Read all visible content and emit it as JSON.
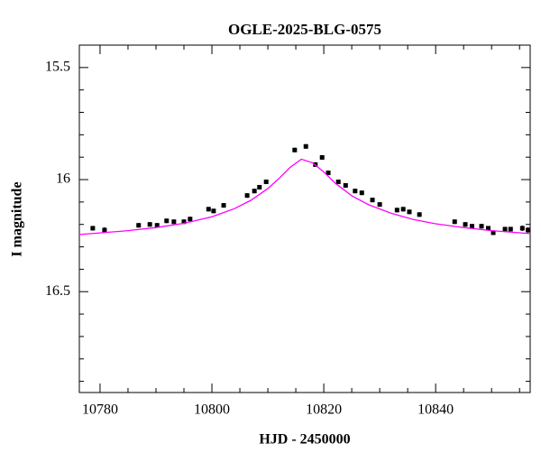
{
  "chart_data": {
    "type": "scatter",
    "title": "OGLE-2025-BLG-0575",
    "x_label": "HJD - 2450000",
    "y_label": "I magnitude",
    "y_inverted": true,
    "xlim": [
      10776.3,
      10856.9
    ],
    "ylim": [
      15.4,
      16.95
    ],
    "xticks": [
      10780,
      10800,
      10820,
      10840
    ],
    "yticks": [
      15.5,
      16,
      16.5
    ],
    "xminorticks": [
      10785,
      10790,
      10795,
      10805,
      10810,
      10815,
      10825,
      10830,
      10835,
      10845,
      10850,
      10855
    ],
    "yminorticks": [
      15.6,
      15.7,
      15.8,
      15.9,
      16.1,
      16.2,
      16.3,
      16.4,
      16.6,
      16.7,
      16.8,
      16.9
    ],
    "series": [
      {
        "color": "#000000",
        "x": [
          10778.7,
          10780.8,
          10786.9,
          10788.9,
          10790.2,
          10791.9,
          10793.2,
          10795.0,
          10796.1,
          10799.4,
          10800.3,
          10802.1,
          10806.3,
          10807.6,
          10808.5,
          10809.7,
          10814.8,
          10816.8,
          10818.5,
          10819.7,
          10820.8,
          10822.6,
          10823.9,
          10825.6,
          10826.8,
          10828.7,
          10830.0,
          10833.1,
          10834.2,
          10835.3,
          10837.1,
          10843.4,
          10845.3,
          10846.5,
          10848.2,
          10849.4,
          10850.3,
          10852.4,
          10853.4,
          10855.5,
          10856.5
        ],
        "values": [
          16.217,
          16.225,
          16.204,
          16.2,
          16.204,
          16.184,
          16.188,
          16.188,
          16.176,
          16.132,
          16.14,
          16.115,
          16.071,
          16.051,
          16.034,
          16.01,
          15.868,
          15.852,
          15.933,
          15.901,
          15.97,
          16.01,
          16.026,
          16.051,
          16.059,
          16.091,
          16.111,
          16.136,
          16.132,
          16.144,
          16.156,
          16.188,
          16.2,
          16.208,
          16.208,
          16.217,
          16.237,
          16.221,
          16.221,
          16.217,
          16.225
        ],
        "errors": [
          0.01,
          0.012,
          0.01,
          0.01,
          0.01,
          0.01,
          0.01,
          0.01,
          0.01,
          0.01,
          0.01,
          0.01,
          0.01,
          0.01,
          0.01,
          0.01,
          0.01,
          0.01,
          0.01,
          0.01,
          0.01,
          0.01,
          0.01,
          0.01,
          0.01,
          0.01,
          0.01,
          0.01,
          0.01,
          0.01,
          0.01,
          0.01,
          0.01,
          0.01,
          0.01,
          0.01,
          0.01,
          0.01,
          0.01,
          0.012,
          0.012
        ]
      },
      {
        "type": "line",
        "color": "#ff00ff",
        "x": [
          10776.3,
          10780,
          10785,
          10790,
          10795,
          10800,
          10804,
          10807,
          10810,
          10812,
          10814,
          10816,
          10818,
          10820,
          10822,
          10825,
          10828,
          10832,
          10836,
          10840,
          10845,
          10850,
          10856.9
        ],
        "values": [
          16.245,
          16.238,
          16.228,
          16.214,
          16.195,
          16.166,
          16.13,
          16.092,
          16.04,
          15.995,
          15.945,
          15.909,
          15.925,
          15.966,
          16.015,
          16.072,
          16.112,
          16.15,
          16.178,
          16.197,
          16.214,
          16.228,
          16.241
        ]
      }
    ]
  }
}
